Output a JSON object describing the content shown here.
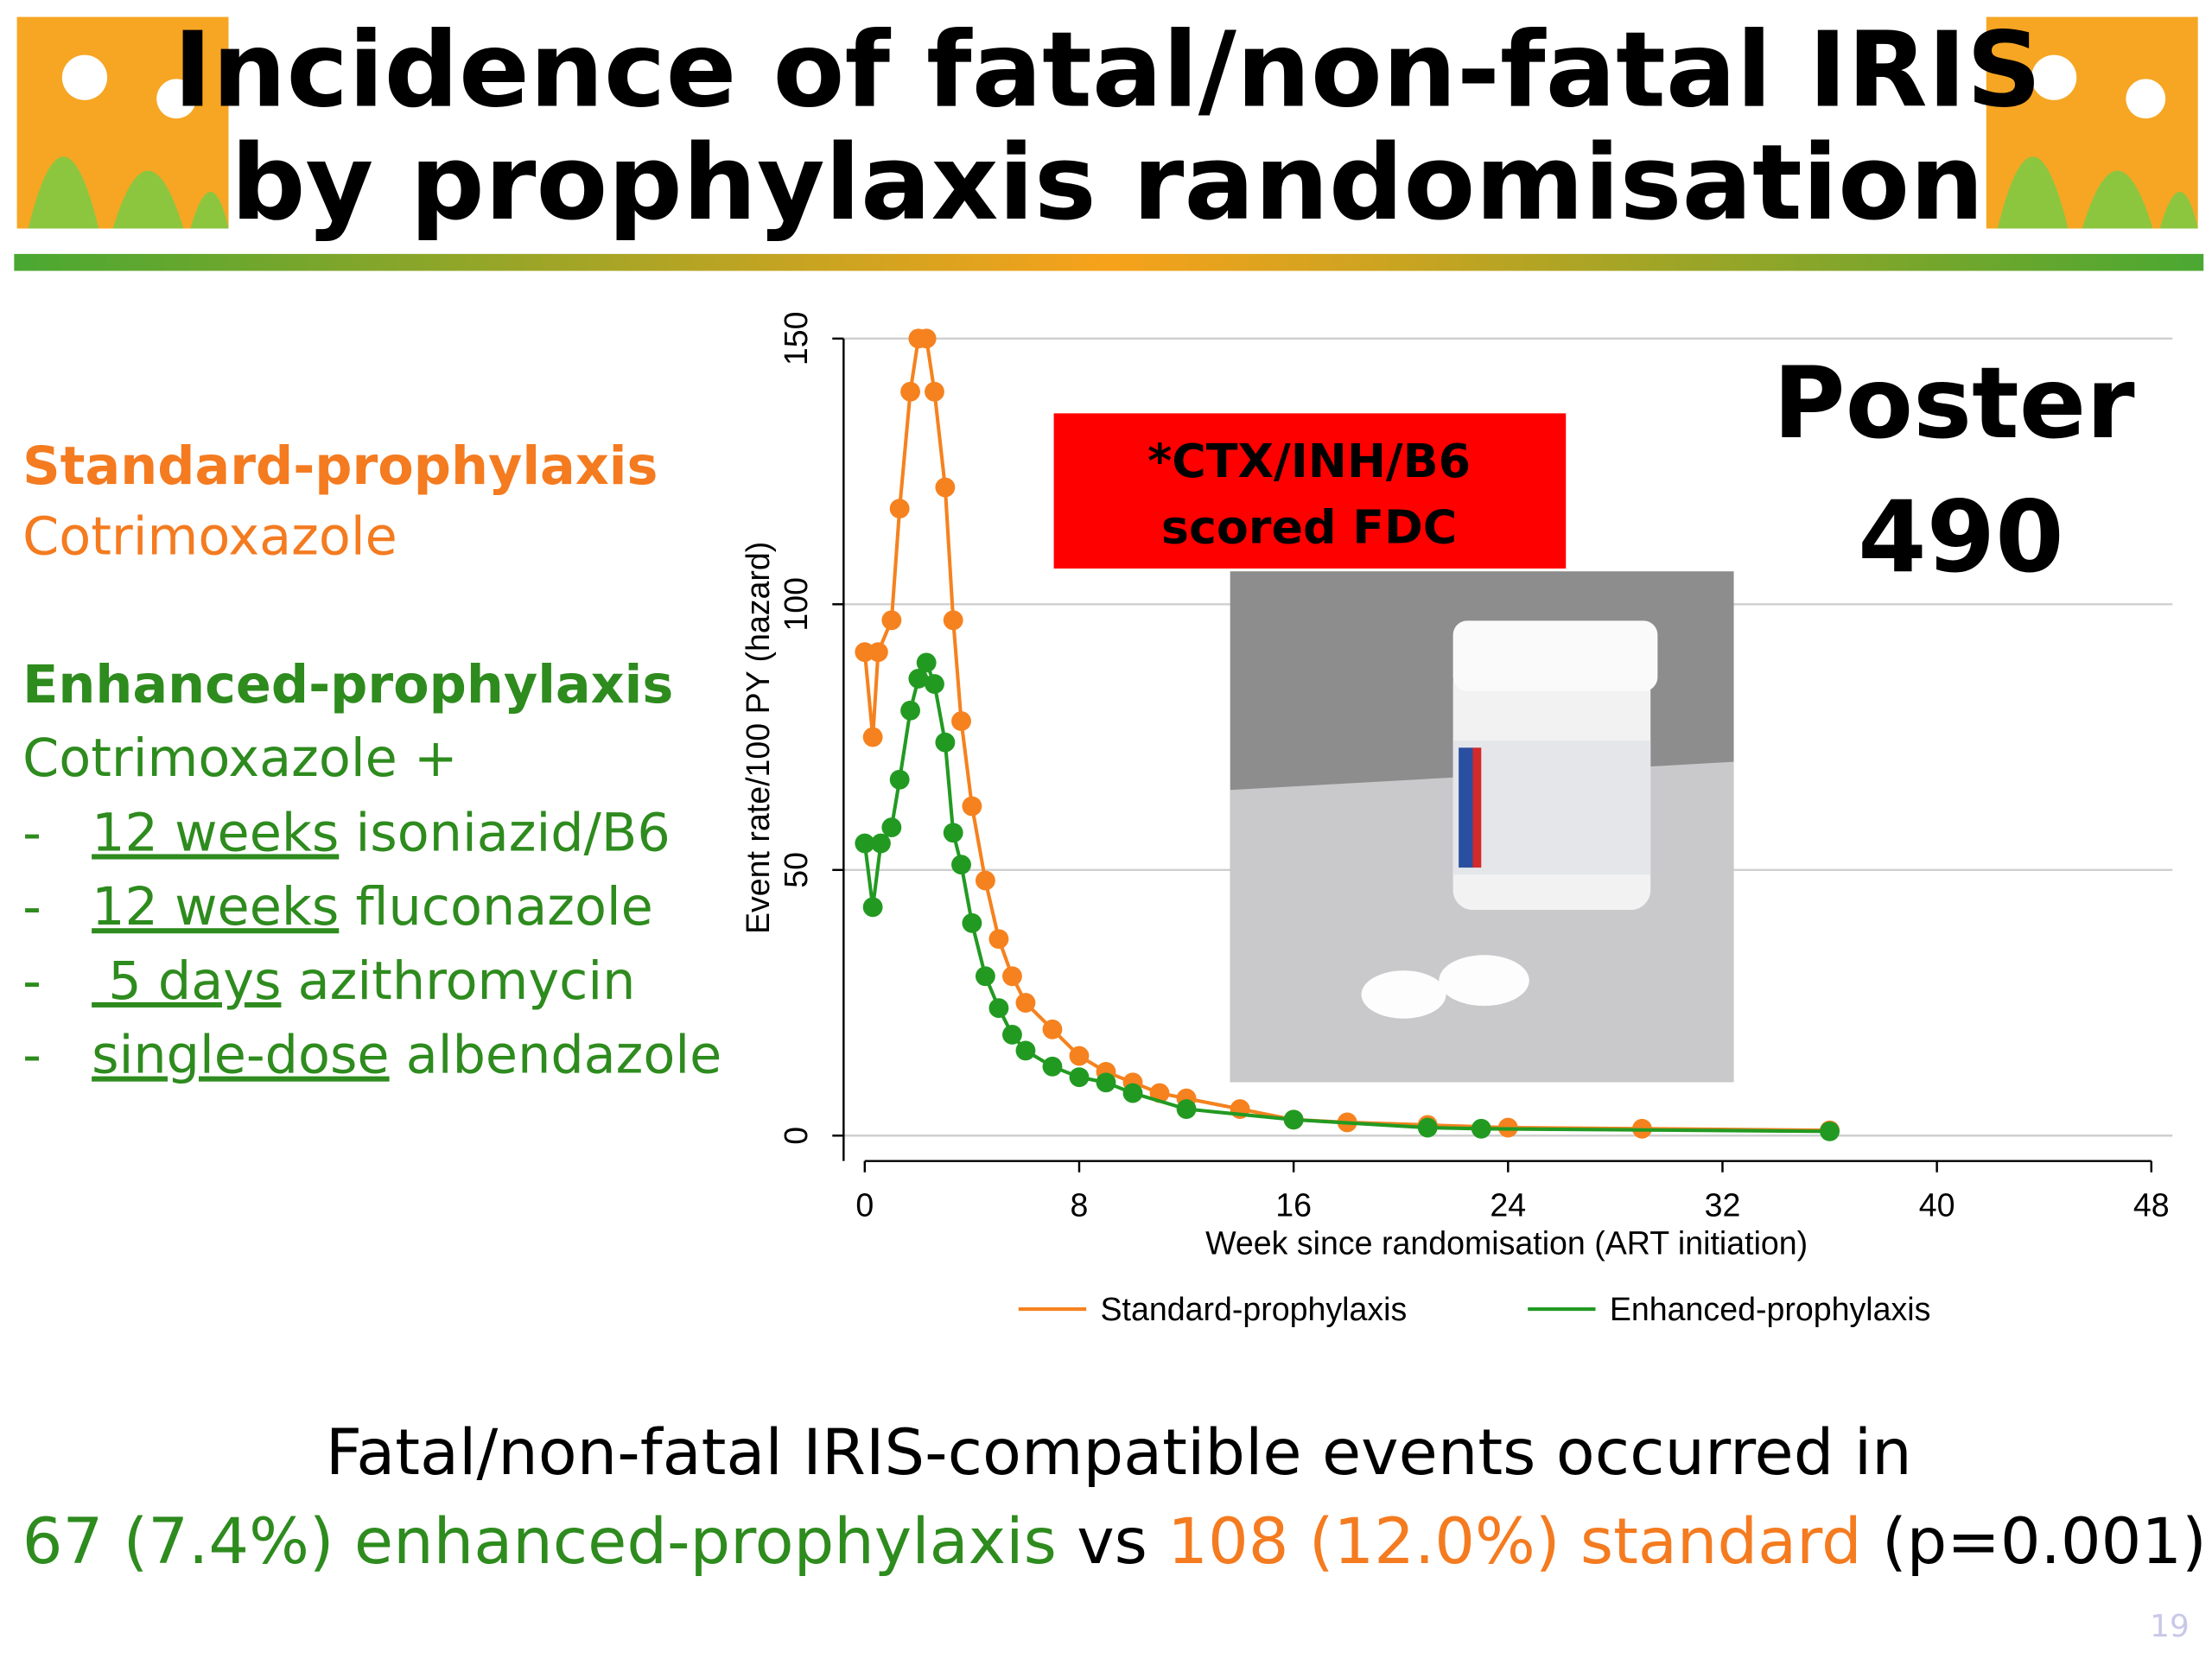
{
  "header": {
    "title_lines": [
      "Incidence of fatal/non-fatal IRIS",
      "by prophylaxis randomisation"
    ]
  },
  "left_panel": {
    "standard_heading": "Standard-prophylaxis",
    "standard_drug": "Cotrimoxazole",
    "enhanced_heading": "Enhanced-prophylaxis",
    "enhanced_drug": "Cotrimoxazole +",
    "items": [
      {
        "bullet": "-",
        "underlined": "12 weeks",
        "rest": " isoniazid/B6"
      },
      {
        "bullet": "-",
        "underlined": "12 weeks",
        "rest": " fluconazole"
      },
      {
        "bullet": "-",
        "underlined": " 5 days",
        "rest": " azithromycin"
      },
      {
        "bullet": "-",
        "underlined": "single-dose",
        "rest": " albendazole"
      }
    ]
  },
  "poster": {
    "lines": [
      "Poster",
      "490"
    ]
  },
  "red_box": {
    "lines": [
      "*CTX/INH/B6",
      "scored FDC"
    ]
  },
  "chart_data": {
    "type": "line",
    "xlabel": "Week since randomisation (ART initiation)",
    "ylabel": "Event rate/100 PY (hazard)",
    "xlim": [
      0,
      48
    ],
    "ylim": [
      0,
      150
    ],
    "xticks": [
      0,
      8,
      16,
      24,
      32,
      40,
      48
    ],
    "yticks": [
      0,
      50,
      100,
      150
    ],
    "grid": true,
    "markers": true,
    "series": [
      {
        "name": "Standard-prophylaxis",
        "color": "#f5821f",
        "x": [
          0,
          0.3,
          0.5,
          1,
          1.3,
          1.7,
          2,
          2.3,
          2.6,
          3,
          3.3,
          3.6,
          4,
          4.5,
          5,
          5.5,
          6,
          7,
          8,
          9,
          10,
          11,
          12,
          14,
          16,
          18,
          21,
          24,
          29,
          36
        ],
        "values": [
          91,
          75,
          91,
          97,
          118,
          140,
          150,
          150,
          140,
          122,
          97,
          78,
          62,
          48,
          37,
          30,
          25,
          20,
          15,
          12,
          10,
          8,
          7,
          5,
          3,
          2.5,
          2,
          1.5,
          1.3,
          1
        ]
      },
      {
        "name": "Enhanced-prophylaxis",
        "color": "#229a22",
        "x": [
          0,
          0.3,
          0.6,
          1,
          1.3,
          1.7,
          2,
          2.3,
          2.6,
          3,
          3.3,
          3.6,
          4,
          4.5,
          5,
          5.5,
          6,
          7,
          8,
          9,
          10,
          12,
          16,
          21,
          23,
          36
        ],
        "values": [
          55,
          43,
          55,
          58,
          67,
          80,
          86,
          89,
          85,
          74,
          57,
          51,
          40,
          30,
          24,
          19,
          16,
          13,
          11,
          10,
          8,
          5,
          3,
          1.5,
          1.3,
          0.8
        ]
      }
    ]
  },
  "footer": {
    "line1": "Fatal/non-fatal IRIS-compatible events occurred in",
    "line2": [
      {
        "text": "67 (7.4%) enhanced-prophylaxis",
        "color": "#2e8b1e"
      },
      {
        "text": " vs ",
        "color": "#000000"
      },
      {
        "text": "108 (12.0%) standard",
        "color": "#f47b20"
      },
      {
        "text": " (p=0.001)",
        "color": "#000000"
      }
    ],
    "page_number": "19"
  }
}
